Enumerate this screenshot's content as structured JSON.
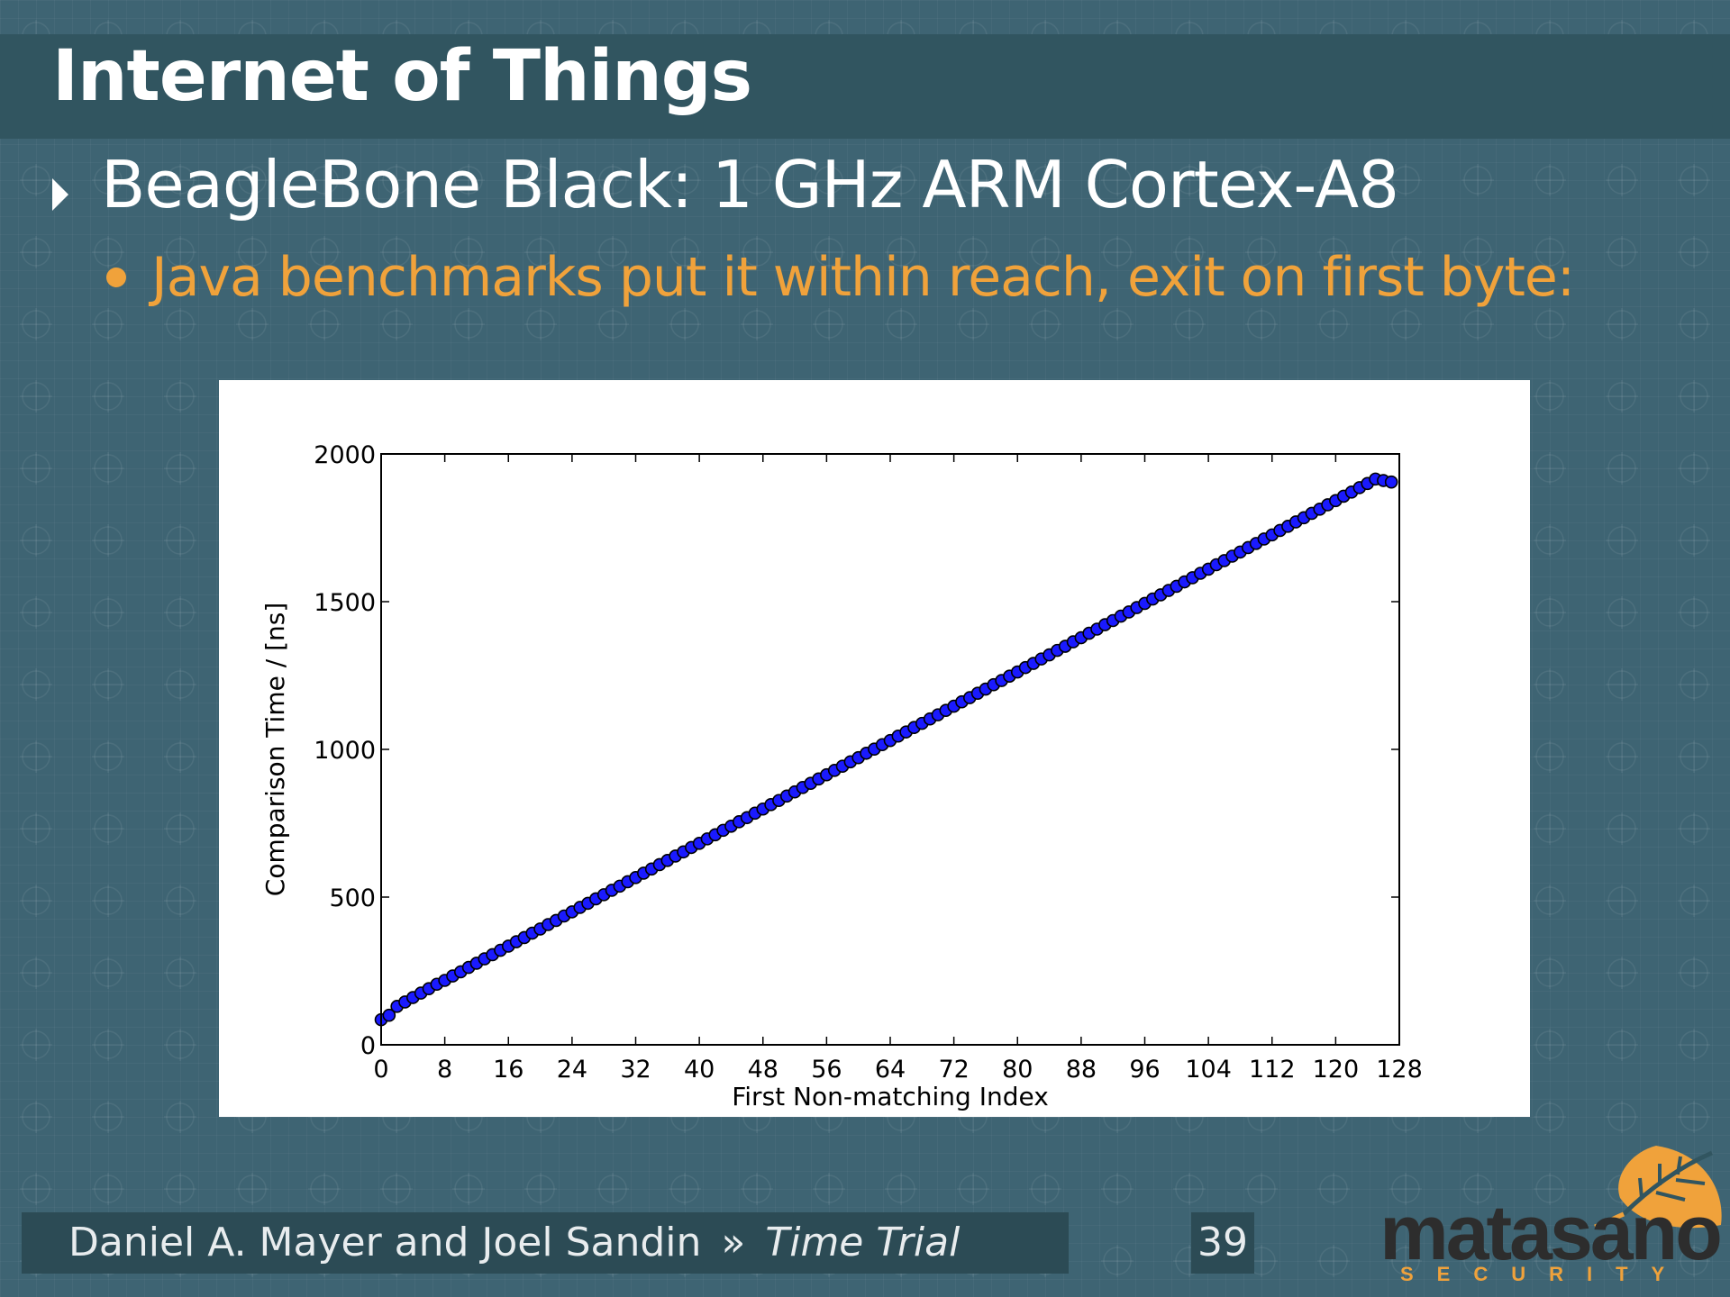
{
  "slide": {
    "title": "Internet of Things",
    "bullet_1": "BeagleBone Black: 1 GHz ARM Cortex-A8",
    "bullet_2": "Java benchmarks put it within reach, exit on first byte:"
  },
  "footer": {
    "authors": "Daniel A. Mayer and Joel Sandin",
    "separator": "»",
    "talk_title": "Time Trial",
    "page_number": "39"
  },
  "logo": {
    "icon": "leaf-icon",
    "wordmark": "matasano",
    "subtitle": "SECURITY"
  },
  "colors": {
    "background": "#3e6473",
    "title_bar": "#315560",
    "accent": "#f0a23b",
    "marker_fill": "#1a1aff",
    "marker_edge": "#000000"
  },
  "chart_data": {
    "type": "scatter",
    "xlabel": "First Non-matching Index",
    "ylabel": "Comparison Time / [ns]",
    "xlim": [
      0,
      128
    ],
    "ylim": [
      0,
      2000
    ],
    "xticks": [
      0,
      8,
      16,
      24,
      32,
      40,
      48,
      56,
      64,
      72,
      80,
      88,
      96,
      104,
      112,
      120,
      128
    ],
    "yticks": [
      0,
      500,
      1000,
      1500,
      2000
    ],
    "grid": false,
    "series": [
      {
        "x": [
          0,
          1,
          2,
          3,
          4,
          5,
          6,
          7,
          8,
          9,
          10,
          11,
          12,
          13,
          14,
          15,
          16,
          17,
          18,
          19,
          20,
          21,
          22,
          23,
          24,
          25,
          26,
          27,
          28,
          29,
          30,
          31,
          32,
          33,
          34,
          35,
          36,
          37,
          38,
          39,
          40,
          41,
          42,
          43,
          44,
          45,
          46,
          47,
          48,
          49,
          50,
          51,
          52,
          53,
          54,
          55,
          56,
          57,
          58,
          59,
          60,
          61,
          62,
          63,
          64,
          65,
          66,
          67,
          68,
          69,
          70,
          71,
          72,
          73,
          74,
          75,
          76,
          77,
          78,
          79,
          80,
          81,
          82,
          83,
          84,
          85,
          86,
          87,
          88,
          89,
          90,
          91,
          92,
          93,
          94,
          95,
          96,
          97,
          98,
          99,
          100,
          101,
          102,
          103,
          104,
          105,
          106,
          107,
          108,
          109,
          110,
          111,
          112,
          113,
          114,
          115,
          116,
          117,
          118,
          119,
          120,
          121,
          122,
          123,
          124,
          125,
          126,
          127
        ],
        "y": [
          85,
          100,
          130,
          145,
          160,
          175,
          190,
          205,
          218,
          233,
          247,
          262,
          276,
          291,
          305,
          320,
          334,
          349,
          363,
          378,
          392,
          407,
          421,
          436,
          450,
          465,
          479,
          494,
          508,
          523,
          537,
          552,
          566,
          581,
          595,
          610,
          624,
          639,
          653,
          668,
          682,
          697,
          711,
          726,
          740,
          755,
          769,
          784,
          798,
          813,
          827,
          842,
          856,
          871,
          885,
          900,
          914,
          929,
          943,
          958,
          972,
          987,
          1001,
          1016,
          1030,
          1045,
          1059,
          1074,
          1088,
          1103,
          1117,
          1132,
          1146,
          1161,
          1175,
          1190,
          1204,
          1219,
          1233,
          1248,
          1262,
          1277,
          1291,
          1306,
          1320,
          1335,
          1349,
          1364,
          1378,
          1393,
          1407,
          1422,
          1436,
          1451,
          1465,
          1480,
          1494,
          1509,
          1523,
          1538,
          1552,
          1567,
          1581,
          1596,
          1610,
          1625,
          1639,
          1654,
          1668,
          1683,
          1697,
          1712,
          1726,
          1741,
          1755,
          1770,
          1784,
          1799,
          1813,
          1828,
          1842,
          1857,
          1871,
          1886,
          1900,
          1915,
          1910,
          1905
        ]
      }
    ]
  }
}
